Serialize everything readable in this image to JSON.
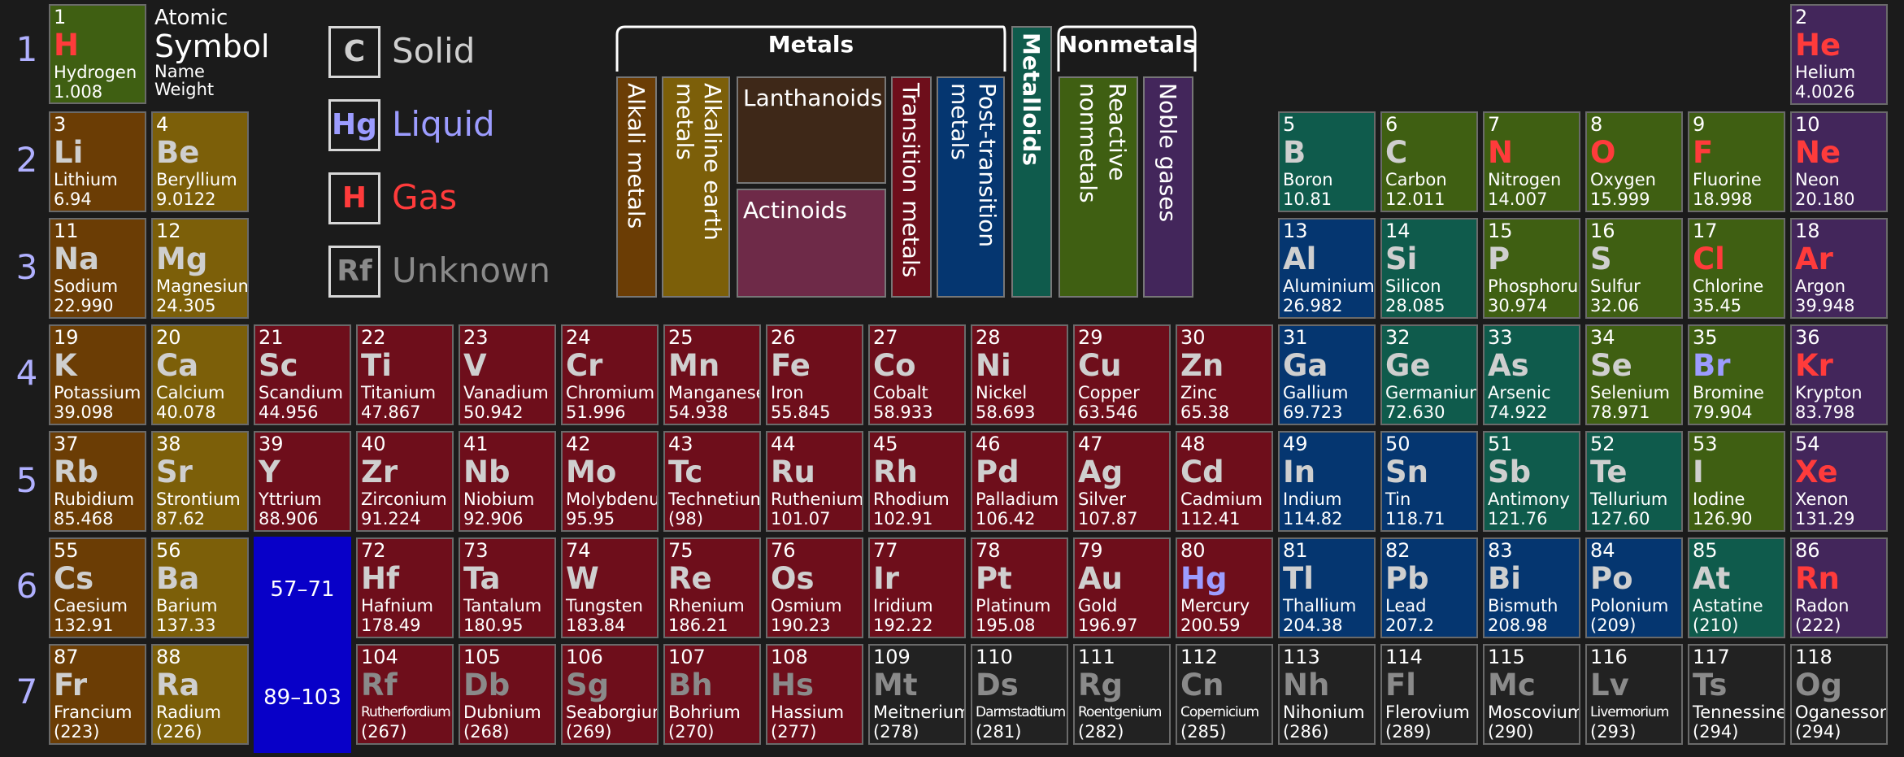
{
  "periods": [
    "1",
    "2",
    "3",
    "4",
    "5",
    "6",
    "7"
  ],
  "key": {
    "number": "1",
    "symbol": "H",
    "name": "Hydrogen",
    "weight": "1.008",
    "label_atomic": "Atomic",
    "label_symbol": "Symbol",
    "label_name": "Name",
    "label_weight": "Weight"
  },
  "legend_states": [
    {
      "symbol": "C",
      "label": "Solid",
      "color": "#cfcfcf"
    },
    {
      "symbol": "Hg",
      "label": "Liquid",
      "color": "#9c9cff"
    },
    {
      "symbol": "H",
      "label": "Gas",
      "color": "#ff3b3b"
    },
    {
      "symbol": "Rf",
      "label": "Unknown",
      "color": "#8a8a8a"
    }
  ],
  "categories": {
    "metals_header": "Metals",
    "metalloids": "Metalloids",
    "nonmetals_header": "Nonmetals",
    "alkali": "Alkali metals",
    "alkaline": "Alkaline earth metals",
    "alkaline_line1": "Alkaline earth",
    "alkaline_line2": "metals",
    "lanthanoids": "Lanthanoids",
    "actinoids": "Actinoids",
    "transition": "Transition metals",
    "post_line1": "Post-transition",
    "post_line2": "metals",
    "reactive_line1": "Reactive",
    "reactive_line2": "nonmetals",
    "noble": "Noble gases",
    "colors": {
      "alkali": "#6b3d05",
      "alkaline": "#7c5f09",
      "lanthanoids": "#3e2818",
      "actinoids": "#6e2a48",
      "transition": "#6e0e1b",
      "post": "#053670",
      "metalloid": "#0f5b4c",
      "reactive": "#3f5f12",
      "noble": "#43265b"
    }
  },
  "ranges": {
    "lanthanide": "57–71",
    "actinide": "89–103"
  },
  "elements": [
    {
      "n": "2",
      "s": "He",
      "name": "Helium",
      "w": "4.0026",
      "cat": "noble",
      "st": "gas",
      "p": 1,
      "g": 18
    },
    {
      "n": "3",
      "s": "Li",
      "name": "Lithium",
      "w": "6.94",
      "cat": "alkali",
      "st": "solid",
      "p": 2,
      "g": 1
    },
    {
      "n": "4",
      "s": "Be",
      "name": "Beryllium",
      "w": "9.0122",
      "cat": "alkaline",
      "st": "solid",
      "p": 2,
      "g": 2
    },
    {
      "n": "5",
      "s": "B",
      "name": "Boron",
      "w": "10.81",
      "cat": "metalloid",
      "st": "solid",
      "p": 2,
      "g": 13
    },
    {
      "n": "6",
      "s": "C",
      "name": "Carbon",
      "w": "12.011",
      "cat": "reactive",
      "st": "solid",
      "p": 2,
      "g": 14
    },
    {
      "n": "7",
      "s": "N",
      "name": "Nitrogen",
      "w": "14.007",
      "cat": "reactive",
      "st": "gas",
      "p": 2,
      "g": 15
    },
    {
      "n": "8",
      "s": "O",
      "name": "Oxygen",
      "w": "15.999",
      "cat": "reactive",
      "st": "gas",
      "p": 2,
      "g": 16
    },
    {
      "n": "9",
      "s": "F",
      "name": "Fluorine",
      "w": "18.998",
      "cat": "reactive",
      "st": "gas",
      "p": 2,
      "g": 17
    },
    {
      "n": "10",
      "s": "Ne",
      "name": "Neon",
      "w": "20.180",
      "cat": "noble",
      "st": "gas",
      "p": 2,
      "g": 18
    },
    {
      "n": "11",
      "s": "Na",
      "name": "Sodium",
      "w": "22.990",
      "cat": "alkali",
      "st": "solid",
      "p": 3,
      "g": 1
    },
    {
      "n": "12",
      "s": "Mg",
      "name": "Magnesium",
      "w": "24.305",
      "cat": "alkaline",
      "st": "solid",
      "p": 3,
      "g": 2
    },
    {
      "n": "13",
      "s": "Al",
      "name": "Aluminium",
      "w": "26.982",
      "cat": "post",
      "st": "solid",
      "p": 3,
      "g": 13
    },
    {
      "n": "14",
      "s": "Si",
      "name": "Silicon",
      "w": "28.085",
      "cat": "metalloid",
      "st": "solid",
      "p": 3,
      "g": 14
    },
    {
      "n": "15",
      "s": "P",
      "name": "Phosphorus",
      "w": "30.974",
      "cat": "reactive",
      "st": "solid",
      "p": 3,
      "g": 15
    },
    {
      "n": "16",
      "s": "S",
      "name": "Sulfur",
      "w": "32.06",
      "cat": "reactive",
      "st": "solid",
      "p": 3,
      "g": 16
    },
    {
      "n": "17",
      "s": "Cl",
      "name": "Chlorine",
      "w": "35.45",
      "cat": "reactive",
      "st": "gas",
      "p": 3,
      "g": 17
    },
    {
      "n": "18",
      "s": "Ar",
      "name": "Argon",
      "w": "39.948",
      "cat": "noble",
      "st": "gas",
      "p": 3,
      "g": 18
    },
    {
      "n": "19",
      "s": "K",
      "name": "Potassium",
      "w": "39.098",
      "cat": "alkali",
      "st": "solid",
      "p": 4,
      "g": 1
    },
    {
      "n": "20",
      "s": "Ca",
      "name": "Calcium",
      "w": "40.078",
      "cat": "alkaline",
      "st": "solid",
      "p": 4,
      "g": 2
    },
    {
      "n": "21",
      "s": "Sc",
      "name": "Scandium",
      "w": "44.956",
      "cat": "transition",
      "st": "solid",
      "p": 4,
      "g": 3
    },
    {
      "n": "22",
      "s": "Ti",
      "name": "Titanium",
      "w": "47.867",
      "cat": "transition",
      "st": "solid",
      "p": 4,
      "g": 4
    },
    {
      "n": "23",
      "s": "V",
      "name": "Vanadium",
      "w": "50.942",
      "cat": "transition",
      "st": "solid",
      "p": 4,
      "g": 5
    },
    {
      "n": "24",
      "s": "Cr",
      "name": "Chromium",
      "w": "51.996",
      "cat": "transition",
      "st": "solid",
      "p": 4,
      "g": 6
    },
    {
      "n": "25",
      "s": "Mn",
      "name": "Manganese",
      "w": "54.938",
      "cat": "transition",
      "st": "solid",
      "p": 4,
      "g": 7
    },
    {
      "n": "26",
      "s": "Fe",
      "name": "Iron",
      "w": "55.845",
      "cat": "transition",
      "st": "solid",
      "p": 4,
      "g": 8
    },
    {
      "n": "27",
      "s": "Co",
      "name": "Cobalt",
      "w": "58.933",
      "cat": "transition",
      "st": "solid",
      "p": 4,
      "g": 9
    },
    {
      "n": "28",
      "s": "Ni",
      "name": "Nickel",
      "w": "58.693",
      "cat": "transition",
      "st": "solid",
      "p": 4,
      "g": 10
    },
    {
      "n": "29",
      "s": "Cu",
      "name": "Copper",
      "w": "63.546",
      "cat": "transition",
      "st": "solid",
      "p": 4,
      "g": 11
    },
    {
      "n": "30",
      "s": "Zn",
      "name": "Zinc",
      "w": "65.38",
      "cat": "transition",
      "st": "solid",
      "p": 4,
      "g": 12
    },
    {
      "n": "31",
      "s": "Ga",
      "name": "Gallium",
      "w": "69.723",
      "cat": "post",
      "st": "solid",
      "p": 4,
      "g": 13
    },
    {
      "n": "32",
      "s": "Ge",
      "name": "Germanium",
      "w": "72.630",
      "cat": "metalloid",
      "st": "solid",
      "p": 4,
      "g": 14
    },
    {
      "n": "33",
      "s": "As",
      "name": "Arsenic",
      "w": "74.922",
      "cat": "metalloid",
      "st": "solid",
      "p": 4,
      "g": 15
    },
    {
      "n": "34",
      "s": "Se",
      "name": "Selenium",
      "w": "78.971",
      "cat": "reactive",
      "st": "solid",
      "p": 4,
      "g": 16
    },
    {
      "n": "35",
      "s": "Br",
      "name": "Bromine",
      "w": "79.904",
      "cat": "reactive",
      "st": "liquid",
      "p": 4,
      "g": 17
    },
    {
      "n": "36",
      "s": "Kr",
      "name": "Krypton",
      "w": "83.798",
      "cat": "noble",
      "st": "gas",
      "p": 4,
      "g": 18
    },
    {
      "n": "37",
      "s": "Rb",
      "name": "Rubidium",
      "w": "85.468",
      "cat": "alkali",
      "st": "solid",
      "p": 5,
      "g": 1
    },
    {
      "n": "38",
      "s": "Sr",
      "name": "Strontium",
      "w": "87.62",
      "cat": "alkaline",
      "st": "solid",
      "p": 5,
      "g": 2
    },
    {
      "n": "39",
      "s": "Y",
      "name": "Yttrium",
      "w": "88.906",
      "cat": "transition",
      "st": "solid",
      "p": 5,
      "g": 3
    },
    {
      "n": "40",
      "s": "Zr",
      "name": "Zirconium",
      "w": "91.224",
      "cat": "transition",
      "st": "solid",
      "p": 5,
      "g": 4
    },
    {
      "n": "41",
      "s": "Nb",
      "name": "Niobium",
      "w": "92.906",
      "cat": "transition",
      "st": "solid",
      "p": 5,
      "g": 5
    },
    {
      "n": "42",
      "s": "Mo",
      "name": "Molybdenum",
      "w": "95.95",
      "cat": "transition",
      "st": "solid",
      "p": 5,
      "g": 6
    },
    {
      "n": "43",
      "s": "Tc",
      "name": "Technetium",
      "w": "(98)",
      "cat": "transition",
      "st": "solid",
      "p": 5,
      "g": 7
    },
    {
      "n": "44",
      "s": "Ru",
      "name": "Ruthenium",
      "w": "101.07",
      "cat": "transition",
      "st": "solid",
      "p": 5,
      "g": 8
    },
    {
      "n": "45",
      "s": "Rh",
      "name": "Rhodium",
      "w": "102.91",
      "cat": "transition",
      "st": "solid",
      "p": 5,
      "g": 9
    },
    {
      "n": "46",
      "s": "Pd",
      "name": "Palladium",
      "w": "106.42",
      "cat": "transition",
      "st": "solid",
      "p": 5,
      "g": 10
    },
    {
      "n": "47",
      "s": "Ag",
      "name": "Silver",
      "w": "107.87",
      "cat": "transition",
      "st": "solid",
      "p": 5,
      "g": 11
    },
    {
      "n": "48",
      "s": "Cd",
      "name": "Cadmium",
      "w": "112.41",
      "cat": "transition",
      "st": "solid",
      "p": 5,
      "g": 12
    },
    {
      "n": "49",
      "s": "In",
      "name": "Indium",
      "w": "114.82",
      "cat": "post",
      "st": "solid",
      "p": 5,
      "g": 13
    },
    {
      "n": "50",
      "s": "Sn",
      "name": "Tin",
      "w": "118.71",
      "cat": "post",
      "st": "solid",
      "p": 5,
      "g": 14
    },
    {
      "n": "51",
      "s": "Sb",
      "name": "Antimony",
      "w": "121.76",
      "cat": "metalloid",
      "st": "solid",
      "p": 5,
      "g": 15
    },
    {
      "n": "52",
      "s": "Te",
      "name": "Tellurium",
      "w": "127.60",
      "cat": "metalloid",
      "st": "solid",
      "p": 5,
      "g": 16
    },
    {
      "n": "53",
      "s": "I",
      "name": "Iodine",
      "w": "126.90",
      "cat": "reactive",
      "st": "solid",
      "p": 5,
      "g": 17
    },
    {
      "n": "54",
      "s": "Xe",
      "name": "Xenon",
      "w": "131.29",
      "cat": "noble",
      "st": "gas",
      "p": 5,
      "g": 18
    },
    {
      "n": "55",
      "s": "Cs",
      "name": "Caesium",
      "w": "132.91",
      "cat": "alkali",
      "st": "solid",
      "p": 6,
      "g": 1
    },
    {
      "n": "56",
      "s": "Ba",
      "name": "Barium",
      "w": "137.33",
      "cat": "alkaline",
      "st": "solid",
      "p": 6,
      "g": 2
    },
    {
      "n": "72",
      "s": "Hf",
      "name": "Hafnium",
      "w": "178.49",
      "cat": "transition",
      "st": "solid",
      "p": 6,
      "g": 4
    },
    {
      "n": "73",
      "s": "Ta",
      "name": "Tantalum",
      "w": "180.95",
      "cat": "transition",
      "st": "solid",
      "p": 6,
      "g": 5
    },
    {
      "n": "74",
      "s": "W",
      "name": "Tungsten",
      "w": "183.84",
      "cat": "transition",
      "st": "solid",
      "p": 6,
      "g": 6
    },
    {
      "n": "75",
      "s": "Re",
      "name": "Rhenium",
      "w": "186.21",
      "cat": "transition",
      "st": "solid",
      "p": 6,
      "g": 7
    },
    {
      "n": "76",
      "s": "Os",
      "name": "Osmium",
      "w": "190.23",
      "cat": "transition",
      "st": "solid",
      "p": 6,
      "g": 8
    },
    {
      "n": "77",
      "s": "Ir",
      "name": "Iridium",
      "w": "192.22",
      "cat": "transition",
      "st": "solid",
      "p": 6,
      "g": 9
    },
    {
      "n": "78",
      "s": "Pt",
      "name": "Platinum",
      "w": "195.08",
      "cat": "transition",
      "st": "solid",
      "p": 6,
      "g": 10
    },
    {
      "n": "79",
      "s": "Au",
      "name": "Gold",
      "w": "196.97",
      "cat": "transition",
      "st": "solid",
      "p": 6,
      "g": 11
    },
    {
      "n": "80",
      "s": "Hg",
      "name": "Mercury",
      "w": "200.59",
      "cat": "transition",
      "st": "liquid",
      "p": 6,
      "g": 12
    },
    {
      "n": "81",
      "s": "Tl",
      "name": "Thallium",
      "w": "204.38",
      "cat": "post",
      "st": "solid",
      "p": 6,
      "g": 13
    },
    {
      "n": "82",
      "s": "Pb",
      "name": "Lead",
      "w": "207.2",
      "cat": "post",
      "st": "solid",
      "p": 6,
      "g": 14
    },
    {
      "n": "83",
      "s": "Bi",
      "name": "Bismuth",
      "w": "208.98",
      "cat": "post",
      "st": "solid",
      "p": 6,
      "g": 15
    },
    {
      "n": "84",
      "s": "Po",
      "name": "Polonium",
      "w": "(209)",
      "cat": "post",
      "st": "solid",
      "p": 6,
      "g": 16
    },
    {
      "n": "85",
      "s": "At",
      "name": "Astatine",
      "w": "(210)",
      "cat": "metalloid",
      "st": "solid",
      "p": 6,
      "g": 17
    },
    {
      "n": "86",
      "s": "Rn",
      "name": "Radon",
      "w": "(222)",
      "cat": "noble",
      "st": "gas",
      "p": 6,
      "g": 18
    },
    {
      "n": "87",
      "s": "Fr",
      "name": "Francium",
      "w": "(223)",
      "cat": "alkali",
      "st": "solid",
      "p": 7,
      "g": 1
    },
    {
      "n": "88",
      "s": "Ra",
      "name": "Radium",
      "w": "(226)",
      "cat": "alkaline",
      "st": "solid",
      "p": 7,
      "g": 2
    },
    {
      "n": "104",
      "s": "Rf",
      "name": "Rutherfordium",
      "w": "(267)",
      "cat": "transition",
      "st": "unknown",
      "p": 7,
      "g": 4
    },
    {
      "n": "105",
      "s": "Db",
      "name": "Dubnium",
      "w": "(268)",
      "cat": "transition",
      "st": "unknown",
      "p": 7,
      "g": 5
    },
    {
      "n": "106",
      "s": "Sg",
      "name": "Seaborgium",
      "w": "(269)",
      "cat": "transition",
      "st": "unknown",
      "p": 7,
      "g": 6
    },
    {
      "n": "107",
      "s": "Bh",
      "name": "Bohrium",
      "w": "(270)",
      "cat": "transition",
      "st": "unknown",
      "p": 7,
      "g": 7
    },
    {
      "n": "108",
      "s": "Hs",
      "name": "Hassium",
      "w": "(277)",
      "cat": "transition",
      "st": "unknown",
      "p": 7,
      "g": 8
    },
    {
      "n": "109",
      "s": "Mt",
      "name": "Meitnerium",
      "w": "(278)",
      "cat": "unknown",
      "st": "unknown",
      "p": 7,
      "g": 9
    },
    {
      "n": "110",
      "s": "Ds",
      "name": "Darmstadtium",
      "w": "(281)",
      "cat": "unknown",
      "st": "unknown",
      "p": 7,
      "g": 10
    },
    {
      "n": "111",
      "s": "Rg",
      "name": "Roentgenium",
      "w": "(282)",
      "cat": "unknown",
      "st": "unknown",
      "p": 7,
      "g": 11
    },
    {
      "n": "112",
      "s": "Cn",
      "name": "Copernicium",
      "w": "(285)",
      "cat": "unknown",
      "st": "unknown",
      "p": 7,
      "g": 12
    },
    {
      "n": "113",
      "s": "Nh",
      "name": "Nihonium",
      "w": "(286)",
      "cat": "unknown",
      "st": "unknown",
      "p": 7,
      "g": 13
    },
    {
      "n": "114",
      "s": "Fl",
      "name": "Flerovium",
      "w": "(289)",
      "cat": "unknown",
      "st": "unknown",
      "p": 7,
      "g": 14
    },
    {
      "n": "115",
      "s": "Mc",
      "name": "Moscovium",
      "w": "(290)",
      "cat": "unknown",
      "st": "unknown",
      "p": 7,
      "g": 15
    },
    {
      "n": "116",
      "s": "Lv",
      "name": "Livermorium",
      "w": "(293)",
      "cat": "unknown",
      "st": "unknown",
      "p": 7,
      "g": 16
    },
    {
      "n": "117",
      "s": "Ts",
      "name": "Tennessine",
      "w": "(294)",
      "cat": "unknown",
      "st": "unknown",
      "p": 7,
      "g": 17
    },
    {
      "n": "118",
      "s": "Og",
      "name": "Oganesson",
      "w": "(294)",
      "cat": "unknown",
      "st": "unknown",
      "p": 7,
      "g": 18
    }
  ]
}
